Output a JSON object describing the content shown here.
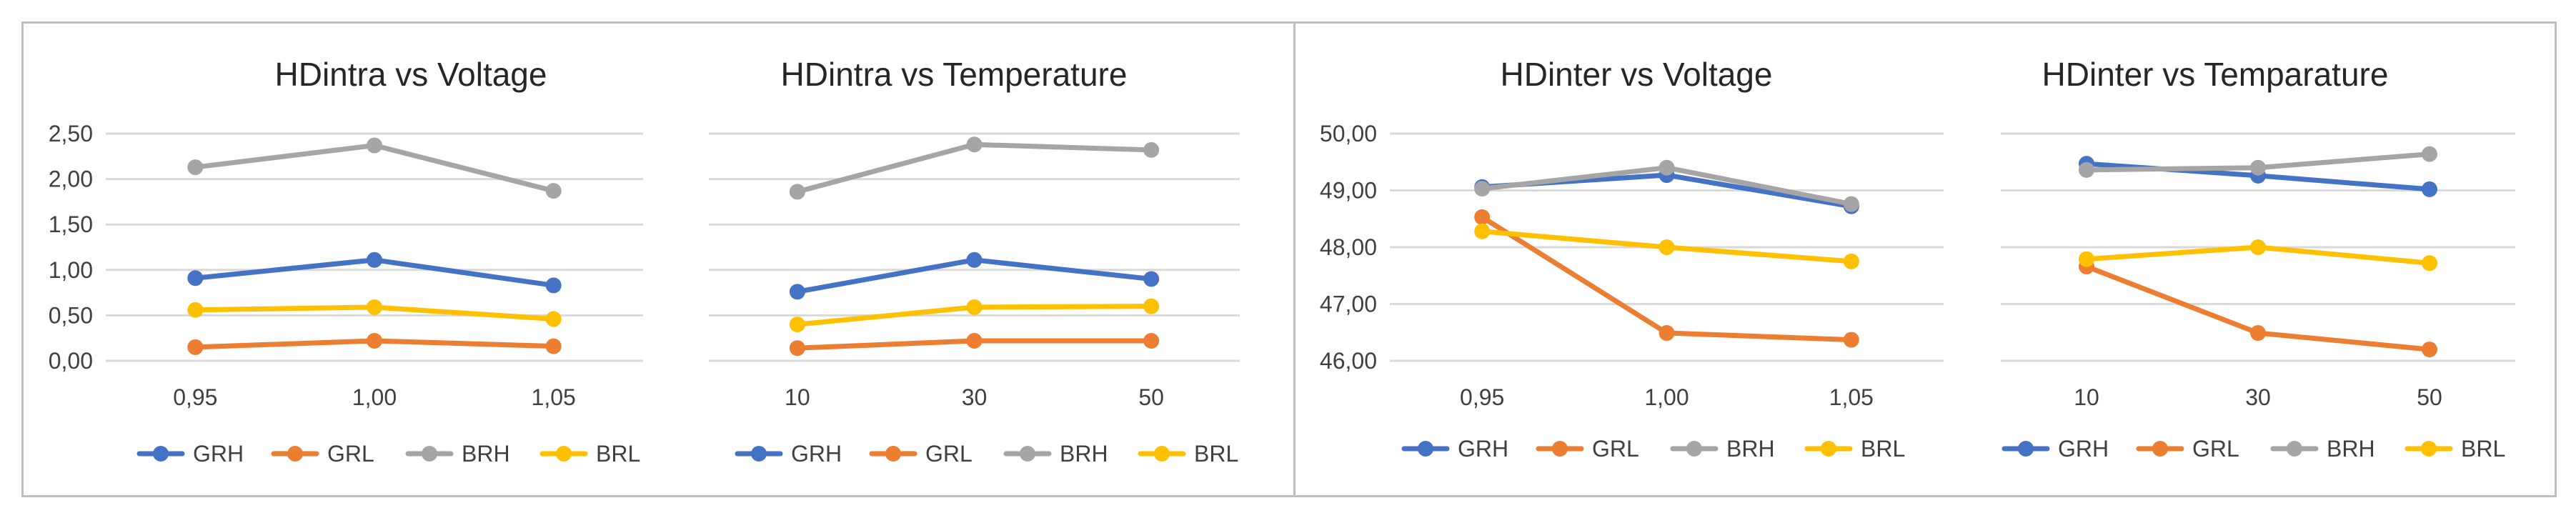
{
  "chart_data": [
    {
      "type": "line",
      "title": "HDintra vs Voltage",
      "categories": [
        "0,95",
        "1,00",
        "1,05"
      ],
      "ylim": [
        0,
        2.5
      ],
      "yticks": [
        "0,00",
        "0,50",
        "1,00",
        "1,50",
        "2,00",
        "2,50"
      ],
      "grid": true,
      "legend": "bottom",
      "series": [
        {
          "name": "GRH",
          "color": "#4472C4",
          "values": [
            0.91,
            1.11,
            0.83
          ]
        },
        {
          "name": "GRL",
          "color": "#ED7D31",
          "values": [
            0.15,
            0.22,
            0.16
          ]
        },
        {
          "name": "BRH",
          "color": "#A5A5A5",
          "values": [
            2.13,
            2.37,
            1.87
          ]
        },
        {
          "name": "BRL",
          "color": "#FFC000",
          "values": [
            0.56,
            0.59,
            0.46
          ]
        }
      ]
    },
    {
      "type": "line",
      "title": "HDintra vs Temperature",
      "categories": [
        "10",
        "30",
        "50"
      ],
      "ylim": [
        0,
        2.5
      ],
      "yticks": [],
      "grid": true,
      "legend": "bottom",
      "series": [
        {
          "name": "GRH",
          "color": "#4472C4",
          "values": [
            0.76,
            1.11,
            0.9
          ]
        },
        {
          "name": "GRL",
          "color": "#ED7D31",
          "values": [
            0.14,
            0.22,
            0.22
          ]
        },
        {
          "name": "BRH",
          "color": "#A5A5A5",
          "values": [
            1.86,
            2.38,
            2.32
          ]
        },
        {
          "name": "BRL",
          "color": "#FFC000",
          "values": [
            0.4,
            0.59,
            0.6
          ]
        }
      ]
    },
    {
      "type": "line",
      "title": "HDinter vs Voltage",
      "categories": [
        "0,95",
        "1,00",
        "1,05"
      ],
      "ylim": [
        46,
        50
      ],
      "yticks": [
        "46,00",
        "47,00",
        "48,00",
        "49,00",
        "50,00"
      ],
      "grid": true,
      "legend": "bottom",
      "series": [
        {
          "name": "GRH",
          "color": "#4472C4",
          "values": [
            49.06,
            49.27,
            48.72
          ]
        },
        {
          "name": "GRL",
          "color": "#ED7D31",
          "values": [
            48.53,
            46.49,
            46.37
          ]
        },
        {
          "name": "BRH",
          "color": "#A5A5A5",
          "values": [
            49.03,
            49.4,
            48.76
          ]
        },
        {
          "name": "BRL",
          "color": "#FFC000",
          "values": [
            48.28,
            48.0,
            47.75
          ]
        }
      ]
    },
    {
      "type": "line",
      "title": "HDinter vs Temparature",
      "categories": [
        "10",
        "30",
        "50"
      ],
      "ylim": [
        46,
        50
      ],
      "yticks": [],
      "grid": true,
      "legend": "bottom",
      "series": [
        {
          "name": "GRH",
          "color": "#4472C4",
          "values": [
            49.47,
            49.26,
            49.02
          ]
        },
        {
          "name": "GRL",
          "color": "#ED7D31",
          "values": [
            47.66,
            46.49,
            46.2
          ]
        },
        {
          "name": "BRH",
          "color": "#A5A5A5",
          "values": [
            49.36,
            49.4,
            49.64
          ]
        },
        {
          "name": "BRL",
          "color": "#FFC000",
          "values": [
            47.79,
            48.0,
            47.72
          ]
        }
      ]
    }
  ]
}
